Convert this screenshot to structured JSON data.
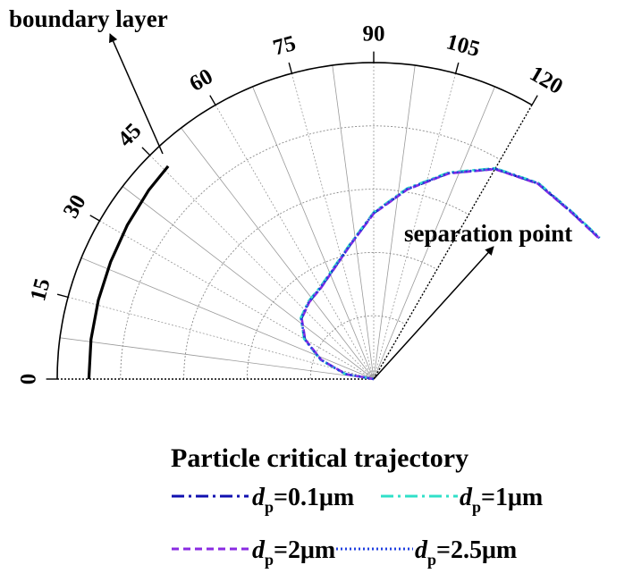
{
  "chart_data": {
    "type": "line",
    "coordinate_system": "polar",
    "angular_axis": {
      "unit": "degrees",
      "range": [
        0,
        120
      ],
      "ticks": [
        0,
        15,
        30,
        45,
        60,
        75,
        90,
        105,
        120
      ],
      "tick_labels": [
        "0",
        "15",
        "30",
        "45",
        "60",
        "75",
        "90",
        "105",
        "120"
      ]
    },
    "radial_axis": {
      "range": [
        0,
        1
      ],
      "grid": true
    },
    "grid": true,
    "boundary_layer_curve": {
      "theta": [
        0,
        8,
        16,
        24,
        32,
        40,
        46
      ],
      "r": [
        0.9,
        0.902,
        0.905,
        0.91,
        0.918,
        0.928,
        0.935
      ]
    },
    "series": [
      {
        "name": "d_p=0.1μm",
        "color": "#1010b0",
        "dash": "dashdot",
        "theta": [
          0,
          10,
          20,
          30,
          40,
          50,
          60,
          70,
          80,
          90,
          100,
          110,
          120,
          130,
          140,
          145,
          148
        ],
        "r": [
          0.0,
          0.09,
          0.177,
          0.251,
          0.298,
          0.318,
          0.334,
          0.37,
          0.43,
          0.524,
          0.609,
          0.692,
          0.767,
          0.807,
          0.818,
          0.83,
          0.84
        ]
      },
      {
        "name": "d_p=1μm",
        "color": "#30e0c8",
        "dash": "dashdot",
        "theta": [
          0,
          10,
          20,
          30,
          40,
          50,
          60,
          70,
          80,
          90,
          100,
          110,
          120,
          130,
          140,
          145,
          148
        ],
        "r": [
          0.0,
          0.092,
          0.18,
          0.254,
          0.301,
          0.321,
          0.337,
          0.373,
          0.433,
          0.527,
          0.612,
          0.695,
          0.769,
          0.809,
          0.82,
          0.832,
          0.842
        ]
      },
      {
        "name": "d_p=2μm",
        "color": "#8a2be2",
        "dash": "dash",
        "theta": [
          0,
          10,
          20,
          30,
          40,
          50,
          60,
          70,
          80,
          90,
          100,
          110,
          120,
          130,
          140,
          145,
          148
        ],
        "r": [
          0.0,
          0.089,
          0.176,
          0.25,
          0.297,
          0.317,
          0.333,
          0.369,
          0.429,
          0.523,
          0.608,
          0.691,
          0.766,
          0.806,
          0.817,
          0.829,
          0.839
        ]
      },
      {
        "name": "d_p=2.5μm",
        "color": "#2040e0",
        "dash": "dot",
        "theta": [
          0,
          10,
          20,
          30,
          40,
          50,
          60,
          70,
          80,
          90,
          100,
          110,
          120,
          130,
          140,
          145,
          148
        ],
        "r": [
          0.0,
          0.091,
          0.178,
          0.252,
          0.299,
          0.319,
          0.335,
          0.371,
          0.431,
          0.525,
          0.61,
          0.693,
          0.768,
          0.808,
          0.819,
          0.831,
          0.841
        ]
      }
    ],
    "annotations": [
      {
        "text": "boundary layer"
      },
      {
        "text": "separation point"
      }
    ],
    "legend": {
      "title": "Particle critical trajectory",
      "placement": "bottom",
      "entries": [
        {
          "symbol": "d",
          "subscript": "p",
          "value": "=0.1μm"
        },
        {
          "symbol": "d",
          "subscript": "p",
          "value": "=1μm"
        },
        {
          "symbol": "d",
          "subscript": "p",
          "value": "=2μm"
        },
        {
          "symbol": "d",
          "subscript": "p",
          "value": "=2.5μm"
        }
      ]
    }
  }
}
